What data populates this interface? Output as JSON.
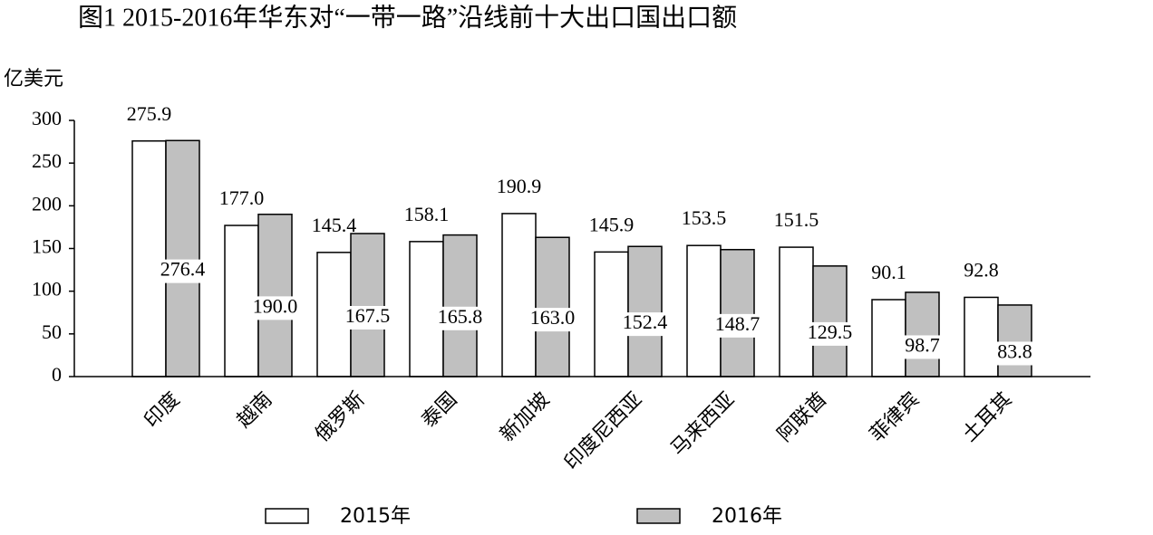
{
  "chart_data": {
    "type": "bar",
    "title": "图1  2015-2016年华东对“一带一路”沿线前十大出口国出口额",
    "y_axis_label": "亿美元",
    "categories": [
      "印度",
      "越南",
      "俄罗斯",
      "泰国",
      "新加坡",
      "印度尼西亚",
      "马来西亚",
      "阿联酋",
      "菲律宾",
      "土耳其"
    ],
    "series": [
      {
        "name": "2015年",
        "color": "#ffffff",
        "values": [
          275.9,
          177.0,
          145.4,
          158.1,
          190.9,
          145.9,
          153.5,
          151.5,
          90.1,
          92.8
        ],
        "value_labels": [
          "275.9",
          "177.0",
          "145.4",
          "158.1",
          "190.9",
          "145.9",
          "153.5",
          "151.5",
          "90.1",
          "92.8"
        ]
      },
      {
        "name": "2016年",
        "color": "#c0c0c0",
        "values": [
          276.4,
          190.0,
          167.5,
          165.8,
          163.0,
          152.4,
          148.7,
          129.5,
          98.7,
          83.8
        ],
        "value_labels": [
          "276.4",
          "190.0",
          "167.5",
          "165.8",
          "163.0",
          "152.4",
          "148.7",
          "129.5",
          "98.7",
          "83.8"
        ]
      }
    ],
    "ylim": [
      0,
      300
    ],
    "yticks": [
      0,
      50,
      100,
      150,
      200,
      250,
      300
    ],
    "legend": "bottom"
  }
}
